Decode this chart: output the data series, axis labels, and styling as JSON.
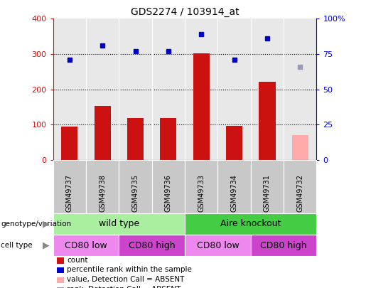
{
  "title": "GDS2274 / 103914_at",
  "samples": [
    "GSM49737",
    "GSM49738",
    "GSM49735",
    "GSM49736",
    "GSM49733",
    "GSM49734",
    "GSM49731",
    "GSM49732"
  ],
  "counts": [
    95,
    152,
    118,
    118,
    302,
    97,
    222,
    70
  ],
  "count_absent": [
    false,
    false,
    false,
    false,
    false,
    false,
    false,
    true
  ],
  "percentile_ranks": [
    71,
    81,
    77,
    77,
    89,
    71,
    86,
    66
  ],
  "rank_absent": [
    false,
    false,
    false,
    false,
    false,
    false,
    false,
    true
  ],
  "ylim_left": [
    0,
    400
  ],
  "ylim_right": [
    0,
    100
  ],
  "yticks_left": [
    0,
    100,
    200,
    300,
    400
  ],
  "yticks_right": [
    0,
    25,
    50,
    75,
    100
  ],
  "yticklabels_right": [
    "0",
    "25",
    "50",
    "75",
    "100%"
  ],
  "bar_color_present": "#cc1111",
  "bar_color_absent": "#ffaaaa",
  "dot_color_present": "#0000cc",
  "dot_color_absent": "#9999bb",
  "bar_width": 0.5,
  "genotype_groups": [
    {
      "label": "wild type",
      "start": 0,
      "end": 3,
      "color": "#aaeea0"
    },
    {
      "label": "Aire knockout",
      "start": 4,
      "end": 7,
      "color": "#44cc44"
    }
  ],
  "celltype_groups": [
    {
      "label": "CD80 low",
      "start": 0,
      "end": 1,
      "color": "#ee88ee"
    },
    {
      "label": "CD80 high",
      "start": 2,
      "end": 3,
      "color": "#cc44cc"
    },
    {
      "label": "CD80 low",
      "start": 4,
      "end": 5,
      "color": "#ee88ee"
    },
    {
      "label": "CD80 high",
      "start": 6,
      "end": 7,
      "color": "#cc44cc"
    }
  ],
  "legend_items": [
    {
      "label": "count",
      "color": "#cc1111"
    },
    {
      "label": "percentile rank within the sample",
      "color": "#0000cc"
    },
    {
      "label": "value, Detection Call = ABSENT",
      "color": "#ffaaaa"
    },
    {
      "label": "rank, Detection Call = ABSENT",
      "color": "#9999bb"
    }
  ],
  "left_axis_color": "#cc1111",
  "right_axis_color": "#0000cc",
  "tick_area_color": "#c8c8c8",
  "plot_bg_color": "#e8e8e8"
}
